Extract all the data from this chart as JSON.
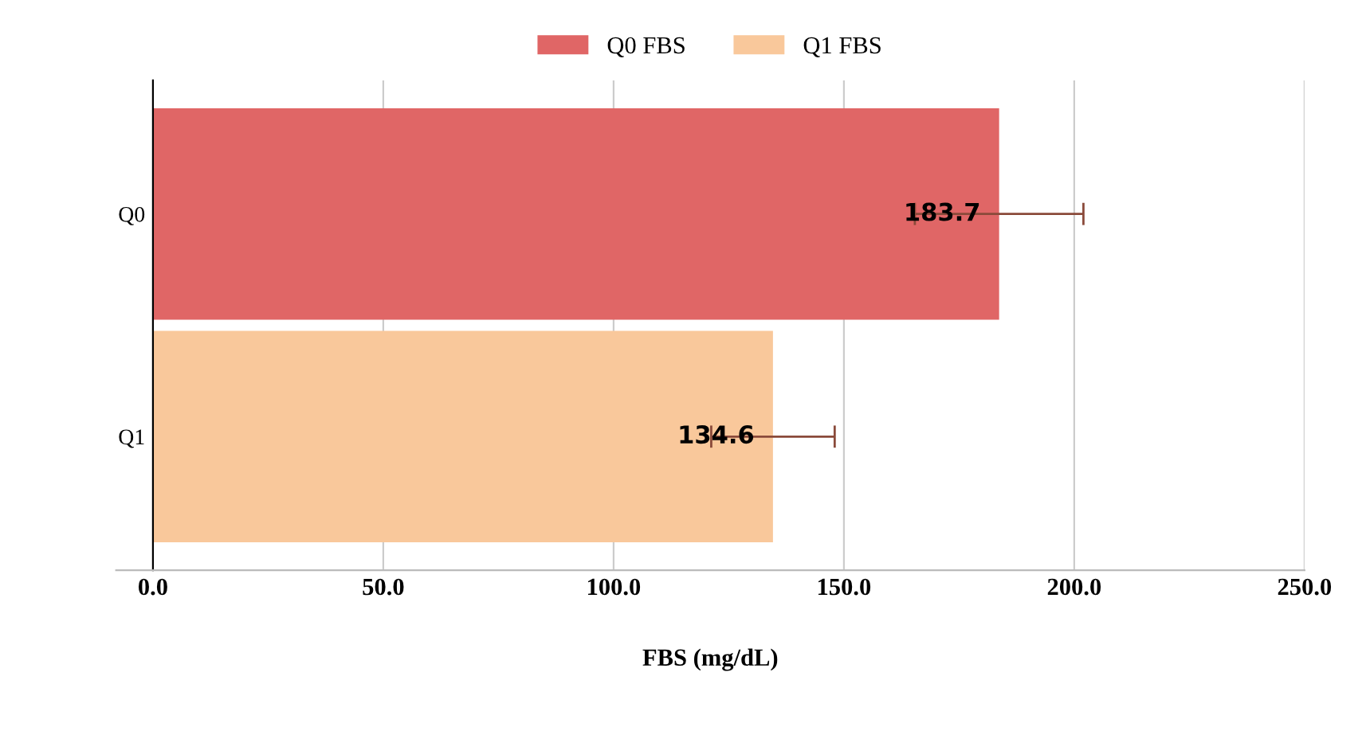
{
  "chart_data": {
    "type": "bar",
    "orientation": "horizontal",
    "categories": [
      "Q0",
      "Q1"
    ],
    "series": [
      {
        "name": "Q0 FBS",
        "color": "#e06666",
        "values": [
          183.7,
          null
        ],
        "errors": [
          18.3,
          null
        ]
      },
      {
        "name": "Q1 FBS",
        "color": "#f9c89b",
        "values": [
          null,
          134.6
        ],
        "errors": [
          null,
          13.4
        ]
      }
    ],
    "xlabel": "FBS (mg/dL)",
    "xlim": [
      -8,
      250
    ],
    "xticks": [
      {
        "value": 0,
        "label": "0.0"
      },
      {
        "value": 50,
        "label": "50.0"
      },
      {
        "value": 100,
        "label": "100.0"
      },
      {
        "value": 150,
        "label": "150.0"
      },
      {
        "value": 200,
        "label": "200.0"
      },
      {
        "value": 250,
        "label": "250.0"
      }
    ],
    "grid": "x",
    "legend": "top",
    "data_labels": true
  }
}
